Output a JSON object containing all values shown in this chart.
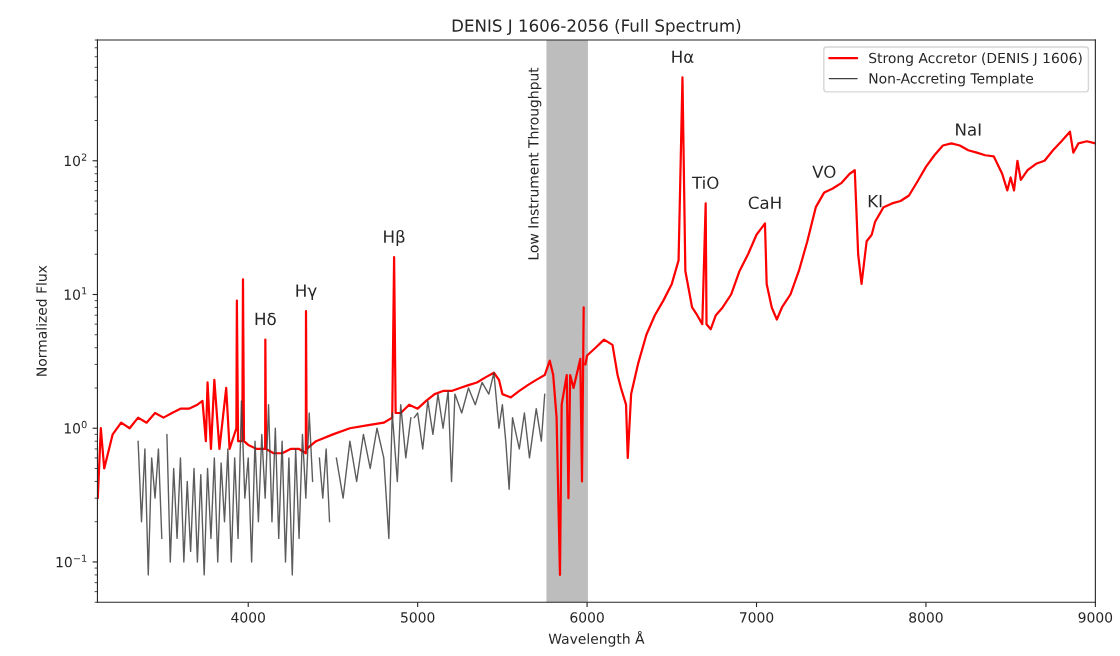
{
  "chart_data": {
    "type": "line",
    "title": "DENIS J 1606-2056 (Full Spectrum)",
    "xlabel": "Wavelength Å",
    "ylabel": "Normalized Flux",
    "log": "y",
    "xlim": [
      3110,
      9000
    ],
    "ylim": [
      0.05,
      800
    ],
    "xticks": [
      4000,
      5000,
      6000,
      7000,
      8000,
      9000
    ],
    "yticks": [
      {
        "value": 0.1,
        "label": "10$^{−1}$"
      },
      {
        "value": 1,
        "label": "10$^{0}$"
      },
      {
        "value": 10,
        "label": "10$^{1}$"
      },
      {
        "value": 100,
        "label": "10$^{2}$"
      }
    ],
    "grid": false,
    "legend": "top right",
    "line_style": "solid",
    "marker": "none",
    "bands": [
      {
        "axis": "x",
        "from": 5760,
        "to": 6005,
        "label": "Low Instrument Throughput",
        "color": "#bdbdbd"
      }
    ],
    "annotations": [
      {
        "text": "Hδ",
        "x": 4101,
        "y": 4.6
      },
      {
        "text": "Hγ",
        "x": 4341,
        "y": 7.5
      },
      {
        "text": "Hβ",
        "x": 4861,
        "y": 19
      },
      {
        "text": "Hα",
        "x": 6563,
        "y": 420
      },
      {
        "text": "TiO",
        "x": 6700,
        "y": 48
      },
      {
        "text": "CaH",
        "x": 7050,
        "y": 34
      },
      {
        "text": "VO",
        "x": 7400,
        "y": 58
      },
      {
        "text": "KI",
        "x": 7700,
        "y": 35
      },
      {
        "text": "NaI",
        "x": 8250,
        "y": 120
      }
    ],
    "series": [
      {
        "name": "Strong Accretor (DENIS J 1606)",
        "color": "#ff0000",
        "x": [
          3112,
          3130,
          3150,
          3200,
          3250,
          3300,
          3350,
          3400,
          3450,
          3500,
          3550,
          3600,
          3650,
          3700,
          3730,
          3750,
          3760,
          3780,
          3800,
          3830,
          3870,
          3890,
          3930,
          3933,
          3940,
          3965,
          3969,
          3975,
          4000,
          4050,
          4100,
          4101,
          4105,
          4150,
          4200,
          4250,
          4300,
          4340,
          4341,
          4345,
          4400,
          4500,
          4600,
          4700,
          4800,
          4850,
          4861,
          4870,
          4900,
          4950,
          5000,
          5050,
          5100,
          5150,
          5200,
          5250,
          5300,
          5350,
          5400,
          5450,
          5480,
          5500,
          5550,
          5600,
          5650,
          5700,
          5750,
          5780,
          5800,
          5820,
          5840,
          5850,
          5880,
          5890,
          5900,
          5920,
          5960,
          5970,
          5980,
          5985,
          5990,
          6000,
          6050,
          6100,
          6150,
          6180,
          6200,
          6230,
          6240,
          6260,
          6300,
          6350,
          6400,
          6450,
          6500,
          6540,
          6563,
          6580,
          6620,
          6650,
          6680,
          6700,
          6705,
          6730,
          6760,
          6800,
          6850,
          6900,
          6950,
          7000,
          7050,
          7060,
          7090,
          7120,
          7150,
          7200,
          7250,
          7300,
          7350,
          7400,
          7450,
          7500,
          7550,
          7580,
          7600,
          7620,
          7650,
          7680,
          7700,
          7750,
          7800,
          7850,
          7900,
          7950,
          8000,
          8050,
          8100,
          8150,
          8200,
          8250,
          8300,
          8350,
          8400,
          8450,
          8480,
          8500,
          8520,
          8540,
          8560,
          8600,
          8650,
          8700,
          8750,
          8800,
          8850,
          8870,
          8900,
          8950,
          9000
        ],
        "values": [
          0.3,
          1.0,
          0.5,
          0.9,
          1.1,
          1.0,
          1.2,
          1.1,
          1.3,
          1.2,
          1.3,
          1.4,
          1.4,
          1.5,
          1.6,
          0.8,
          2.2,
          0.7,
          2.3,
          0.7,
          2.0,
          0.7,
          1.0,
          9,
          0.8,
          0.8,
          13,
          0.8,
          0.75,
          0.7,
          0.7,
          4.6,
          0.7,
          0.65,
          0.65,
          0.7,
          0.7,
          0.65,
          7.5,
          0.7,
          0.8,
          0.9,
          1.0,
          1.05,
          1.1,
          1.2,
          19,
          1.3,
          1.3,
          1.5,
          1.4,
          1.6,
          1.8,
          1.9,
          1.9,
          2.0,
          2.1,
          2.2,
          2.4,
          2.6,
          2.3,
          1.8,
          1.7,
          1.9,
          2.1,
          2.3,
          2.5,
          3.2,
          2.5,
          1.2,
          0.08,
          1.5,
          2.5,
          0.3,
          2.5,
          2.0,
          3.3,
          0.4,
          8.0,
          null,
          3.0,
          3.5,
          4.0,
          4.6,
          4.2,
          2.5,
          2.0,
          1.5,
          0.6,
          1.8,
          3.0,
          5.0,
          7.0,
          9.0,
          12,
          18,
          420,
          15,
          8,
          7,
          6,
          48,
          6,
          5.5,
          7,
          8,
          10,
          15,
          20,
          28,
          34,
          12,
          8,
          6.5,
          8,
          10,
          15,
          25,
          45,
          58,
          62,
          68,
          80,
          85,
          20,
          12,
          25,
          28,
          35,
          45,
          48,
          50,
          55,
          70,
          90,
          110,
          130,
          135,
          130,
          120,
          115,
          110,
          108,
          80,
          60,
          75,
          60,
          100,
          72,
          85,
          95,
          100,
          120,
          140,
          165,
          115,
          135,
          140,
          135
        ]
      },
      {
        "name": "Non-Accreting Template",
        "color": "#404040",
        "x": [
          3350,
          3370,
          3390,
          3410,
          3430,
          3450,
          3470,
          3490,
          3500,
          3520,
          3540,
          3560,
          3580,
          3600,
          3620,
          3640,
          3660,
          3680,
          3700,
          3720,
          3740,
          3760,
          3780,
          3800,
          3820,
          3840,
          3860,
          3880,
          3900,
          3920,
          3940,
          3960,
          3980,
          4000,
          4020,
          4040,
          4060,
          4080,
          4100,
          4120,
          4140,
          4160,
          4180,
          4200,
          4220,
          4240,
          4260,
          4280,
          4300,
          4320,
          4340,
          4360,
          4380,
          4400,
          4420,
          4440,
          4460,
          4480,
          4500,
          4520,
          4560,
          4600,
          4640,
          4680,
          4720,
          4760,
          4800,
          4830,
          4850,
          4880,
          4900,
          4930,
          4960,
          4970,
          4980,
          5000,
          5030,
          5060,
          5090,
          5120,
          5150,
          5180,
          5200,
          5220,
          5260,
          5300,
          5340,
          5380,
          5420,
          5450,
          5480,
          5500,
          5520,
          5540,
          5560,
          5600,
          5630,
          5660,
          5700,
          5730,
          5750
        ],
        "values": [
          0.8,
          0.2,
          0.7,
          0.08,
          0.6,
          0.3,
          0.7,
          0.15,
          null,
          0.9,
          0.1,
          0.5,
          0.15,
          0.6,
          0.1,
          0.4,
          0.12,
          0.5,
          0.1,
          0.45,
          0.08,
          0.5,
          0.15,
          0.6,
          0.1,
          0.55,
          0.2,
          0.7,
          0.1,
          0.6,
          0.15,
          1.6,
          0.3,
          0.6,
          0.1,
          0.8,
          0.2,
          0.9,
          0.3,
          1.5,
          0.2,
          1.0,
          0.15,
          0.8,
          0.1,
          0.6,
          0.08,
          0.7,
          0.15,
          0.9,
          0.3,
          1.3,
          0.4,
          null,
          0.6,
          0.3,
          0.7,
          0.2,
          null,
          0.6,
          0.3,
          0.8,
          0.4,
          0.9,
          0.5,
          1.0,
          0.6,
          0.15,
          1.3,
          0.4,
          1.5,
          0.6,
          1.2,
          null,
          1.2,
          1.3,
          0.7,
          1.6,
          0.9,
          1.8,
          1.0,
          1.9,
          0.4,
          1.8,
          1.3,
          2.0,
          1.5,
          2.2,
          1.8,
          2.6,
          1.0,
          1.5,
          0.8,
          0.35,
          1.2,
          0.7,
          1.3,
          0.6,
          1.4,
          0.8,
          1.8
        ]
      }
    ]
  }
}
